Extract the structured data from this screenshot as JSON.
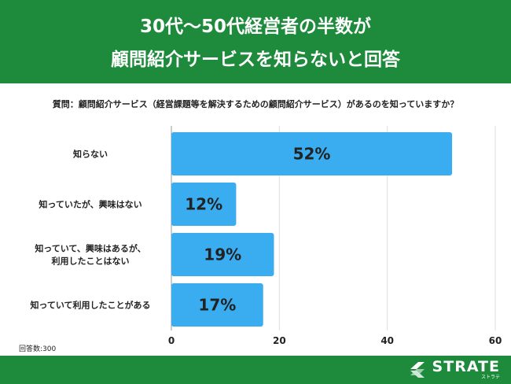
{
  "header": {
    "line1": "30代〜50代経営者の半数が",
    "line2": "顧問紹介サービスを知らないと回答"
  },
  "question": "質問：顧問紹介サービス（経営課題等を解決するための顧問紹介サービス）があるのを知っていますか？",
  "sample": "回答数:300",
  "logo": {
    "word": "STRATE",
    "sub": "ストラテ"
  },
  "chart_data": {
    "type": "bar",
    "orientation": "horizontal",
    "categories": [
      [
        "知らない"
      ],
      [
        "知っていたが、興味はない"
      ],
      [
        "知っていて、興味はあるが、",
        "利用したことはない"
      ],
      [
        "知っていて利用したことがある"
      ]
    ],
    "values": [
      52,
      12,
      19,
      17
    ],
    "value_labels": [
      "52%",
      "12%",
      "19%",
      "17%"
    ],
    "xlim": [
      0,
      60
    ],
    "xticks": [
      0,
      20,
      40,
      60
    ],
    "grid": true,
    "color": "#3aacf0"
  }
}
